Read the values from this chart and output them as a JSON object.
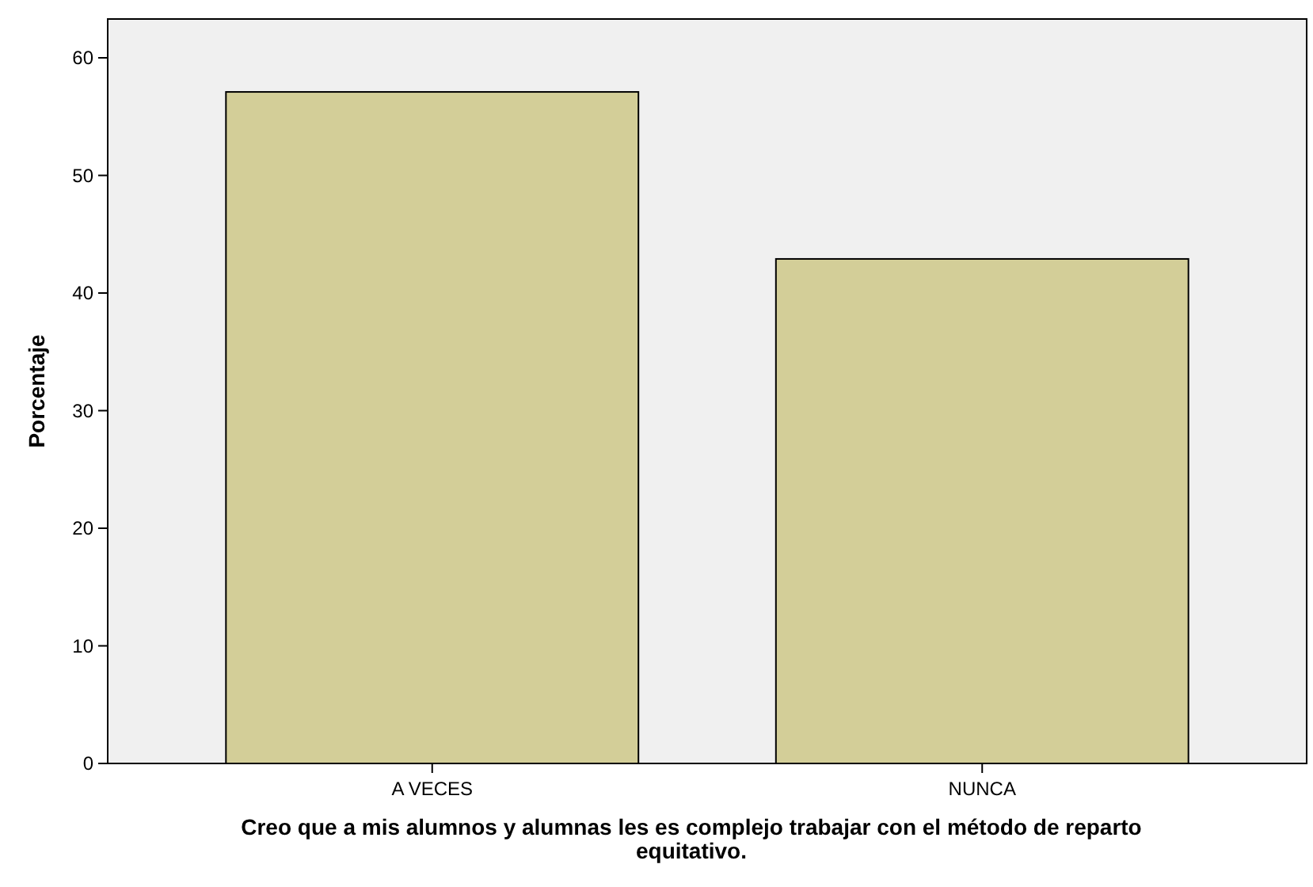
{
  "chart_data": {
    "type": "bar",
    "xlabel": "Creo que a mis alumnos y alumnas les es complejo trabajar con el método de reparto equitativo.",
    "ylabel": "Porcentaje",
    "categories": [
      "A VECES",
      "NUNCA"
    ],
    "values": [
      57.1,
      42.9
    ],
    "color": "#d3ce98",
    "ylim": [
      0,
      63.3
    ],
    "yticks": [
      0,
      10,
      20,
      30,
      40,
      50,
      60
    ],
    "grid": false
  }
}
